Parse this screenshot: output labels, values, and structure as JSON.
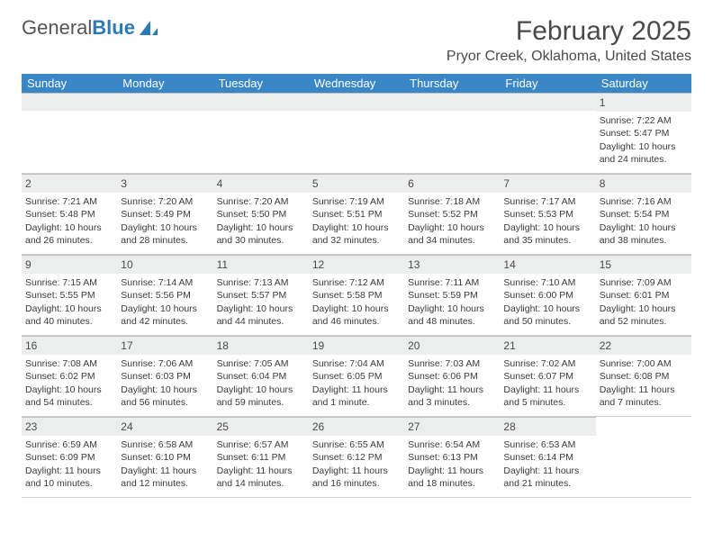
{
  "logo": {
    "word1": "General",
    "word2": "Blue"
  },
  "title": "February 2025",
  "location": "Pryor Creek, Oklahoma, United States",
  "colors": {
    "header_bg": "#3a87c7",
    "header_text": "#ffffff",
    "daynum_bg": "#eceded",
    "border": "#bfbfbf"
  },
  "weekdays": [
    "Sunday",
    "Monday",
    "Tuesday",
    "Wednesday",
    "Thursday",
    "Friday",
    "Saturday"
  ],
  "weeks": [
    [
      null,
      null,
      null,
      null,
      null,
      null,
      {
        "n": "1",
        "sr": "Sunrise: 7:22 AM",
        "ss": "Sunset: 5:47 PM",
        "dl": "Daylight: 10 hours and 24 minutes."
      }
    ],
    [
      {
        "n": "2",
        "sr": "Sunrise: 7:21 AM",
        "ss": "Sunset: 5:48 PM",
        "dl": "Daylight: 10 hours and 26 minutes."
      },
      {
        "n": "3",
        "sr": "Sunrise: 7:20 AM",
        "ss": "Sunset: 5:49 PM",
        "dl": "Daylight: 10 hours and 28 minutes."
      },
      {
        "n": "4",
        "sr": "Sunrise: 7:20 AM",
        "ss": "Sunset: 5:50 PM",
        "dl": "Daylight: 10 hours and 30 minutes."
      },
      {
        "n": "5",
        "sr": "Sunrise: 7:19 AM",
        "ss": "Sunset: 5:51 PM",
        "dl": "Daylight: 10 hours and 32 minutes."
      },
      {
        "n": "6",
        "sr": "Sunrise: 7:18 AM",
        "ss": "Sunset: 5:52 PM",
        "dl": "Daylight: 10 hours and 34 minutes."
      },
      {
        "n": "7",
        "sr": "Sunrise: 7:17 AM",
        "ss": "Sunset: 5:53 PM",
        "dl": "Daylight: 10 hours and 35 minutes."
      },
      {
        "n": "8",
        "sr": "Sunrise: 7:16 AM",
        "ss": "Sunset: 5:54 PM",
        "dl": "Daylight: 10 hours and 38 minutes."
      }
    ],
    [
      {
        "n": "9",
        "sr": "Sunrise: 7:15 AM",
        "ss": "Sunset: 5:55 PM",
        "dl": "Daylight: 10 hours and 40 minutes."
      },
      {
        "n": "10",
        "sr": "Sunrise: 7:14 AM",
        "ss": "Sunset: 5:56 PM",
        "dl": "Daylight: 10 hours and 42 minutes."
      },
      {
        "n": "11",
        "sr": "Sunrise: 7:13 AM",
        "ss": "Sunset: 5:57 PM",
        "dl": "Daylight: 10 hours and 44 minutes."
      },
      {
        "n": "12",
        "sr": "Sunrise: 7:12 AM",
        "ss": "Sunset: 5:58 PM",
        "dl": "Daylight: 10 hours and 46 minutes."
      },
      {
        "n": "13",
        "sr": "Sunrise: 7:11 AM",
        "ss": "Sunset: 5:59 PM",
        "dl": "Daylight: 10 hours and 48 minutes."
      },
      {
        "n": "14",
        "sr": "Sunrise: 7:10 AM",
        "ss": "Sunset: 6:00 PM",
        "dl": "Daylight: 10 hours and 50 minutes."
      },
      {
        "n": "15",
        "sr": "Sunrise: 7:09 AM",
        "ss": "Sunset: 6:01 PM",
        "dl": "Daylight: 10 hours and 52 minutes."
      }
    ],
    [
      {
        "n": "16",
        "sr": "Sunrise: 7:08 AM",
        "ss": "Sunset: 6:02 PM",
        "dl": "Daylight: 10 hours and 54 minutes."
      },
      {
        "n": "17",
        "sr": "Sunrise: 7:06 AM",
        "ss": "Sunset: 6:03 PM",
        "dl": "Daylight: 10 hours and 56 minutes."
      },
      {
        "n": "18",
        "sr": "Sunrise: 7:05 AM",
        "ss": "Sunset: 6:04 PM",
        "dl": "Daylight: 10 hours and 59 minutes."
      },
      {
        "n": "19",
        "sr": "Sunrise: 7:04 AM",
        "ss": "Sunset: 6:05 PM",
        "dl": "Daylight: 11 hours and 1 minute."
      },
      {
        "n": "20",
        "sr": "Sunrise: 7:03 AM",
        "ss": "Sunset: 6:06 PM",
        "dl": "Daylight: 11 hours and 3 minutes."
      },
      {
        "n": "21",
        "sr": "Sunrise: 7:02 AM",
        "ss": "Sunset: 6:07 PM",
        "dl": "Daylight: 11 hours and 5 minutes."
      },
      {
        "n": "22",
        "sr": "Sunrise: 7:00 AM",
        "ss": "Sunset: 6:08 PM",
        "dl": "Daylight: 11 hours and 7 minutes."
      }
    ],
    [
      {
        "n": "23",
        "sr": "Sunrise: 6:59 AM",
        "ss": "Sunset: 6:09 PM",
        "dl": "Daylight: 11 hours and 10 minutes."
      },
      {
        "n": "24",
        "sr": "Sunrise: 6:58 AM",
        "ss": "Sunset: 6:10 PM",
        "dl": "Daylight: 11 hours and 12 minutes."
      },
      {
        "n": "25",
        "sr": "Sunrise: 6:57 AM",
        "ss": "Sunset: 6:11 PM",
        "dl": "Daylight: 11 hours and 14 minutes."
      },
      {
        "n": "26",
        "sr": "Sunrise: 6:55 AM",
        "ss": "Sunset: 6:12 PM",
        "dl": "Daylight: 11 hours and 16 minutes."
      },
      {
        "n": "27",
        "sr": "Sunrise: 6:54 AM",
        "ss": "Sunset: 6:13 PM",
        "dl": "Daylight: 11 hours and 18 minutes."
      },
      {
        "n": "28",
        "sr": "Sunrise: 6:53 AM",
        "ss": "Sunset: 6:14 PM",
        "dl": "Daylight: 11 hours and 21 minutes."
      },
      null
    ]
  ]
}
